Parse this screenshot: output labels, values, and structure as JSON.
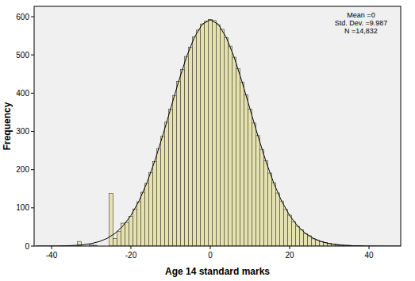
{
  "chart_data": {
    "type": "histogram",
    "x_label": "Age 14 standard marks",
    "y_label": "Frequency",
    "annotations": [
      "Mean =0",
      "Std. Dev. =9.987",
      "N =14,832"
    ],
    "bins": [
      -34.5,
      -33.5,
      -32.5,
      -31.5,
      -30.5,
      -29.5,
      -28.5,
      -27.5,
      -26.5,
      -25.5,
      -24.5,
      -23.5,
      -22.5,
      -21.5,
      -20.5,
      -19.5,
      -18.5,
      -17.5,
      -16.5,
      -15.5,
      -14.5,
      -13.5,
      -12.5,
      -11.5,
      -10.5,
      -9.5,
      -8.5,
      -7.5,
      -6.5,
      -5.5,
      -4.5,
      -3.5,
      -2.5,
      -1.5,
      -0.5,
      0.5,
      1.5,
      2.5,
      3.5,
      4.5,
      5.5,
      6.5,
      7.5,
      8.5,
      9.5,
      10.5,
      11.5,
      12.5,
      13.5,
      14.5,
      15.5,
      16.5,
      17.5,
      18.5,
      19.5,
      20.5,
      21.5,
      22.5,
      23.5,
      24.5,
      25.5,
      26.5,
      27.5,
      28.5,
      29.5,
      30.5,
      31.5,
      32.5,
      33.5,
      34.5,
      35.5,
      36.5,
      37.5,
      38.5,
      39.5,
      40.5
    ],
    "values": [
      0,
      12,
      0,
      0,
      3,
      2,
      0,
      0,
      0,
      138,
      20,
      38,
      60,
      62,
      78,
      97,
      116,
      141,
      164,
      192,
      221,
      255,
      287,
      324,
      358,
      394,
      431,
      462,
      496,
      520,
      547,
      565,
      581,
      588,
      593,
      590,
      579,
      567,
      545,
      523,
      494,
      464,
      429,
      396,
      358,
      322,
      289,
      253,
      223,
      191,
      166,
      139,
      118,
      96,
      81,
      64,
      52,
      43,
      32,
      27,
      19,
      15,
      12,
      9,
      7,
      5,
      4,
      3,
      2,
      2,
      1,
      1,
      1,
      0,
      0
    ],
    "color": "#e6e2b0",
    "curve": {
      "type": "line",
      "color": "#000000",
      "x": [
        -44,
        -42,
        -40,
        -38,
        -36,
        -34,
        -32,
        -30,
        -28,
        -26,
        -24,
        -22,
        -20,
        -18,
        -16,
        -14,
        -12,
        -10,
        -8,
        -6,
        -4,
        -2,
        0,
        2,
        4,
        6,
        8,
        10,
        12,
        14,
        16,
        18,
        20,
        22,
        24,
        26,
        28,
        30,
        32,
        34,
        36,
        38,
        40,
        42,
        44,
        46,
        48
      ],
      "values": [
        0,
        0.1,
        0.2,
        0.4,
        0.9,
        1.8,
        3.5,
        6.6,
        11.7,
        20.2,
        33.2,
        52.6,
        80.1,
        117.2,
        164.8,
        222.3,
        288.5,
        359.1,
        429.9,
        494.6,
        546.5,
        580.3,
        592,
        580.3,
        546.5,
        494.6,
        429.9,
        359.1,
        288.5,
        222.3,
        164.8,
        117.2,
        80.1,
        52.6,
        33.2,
        20.2,
        11.7,
        6.6,
        3.5,
        1.8,
        0.9,
        0.4,
        0.2,
        0.1,
        0,
        0,
        0
      ]
    },
    "xlim": [
      -44.4,
      48
    ],
    "ylim": [
      0,
      627
    ],
    "xticks": [
      -40,
      -20,
      0,
      20,
      40
    ],
    "yticks": [
      0,
      100,
      200,
      300,
      400,
      500,
      600
    ],
    "grid": false
  }
}
